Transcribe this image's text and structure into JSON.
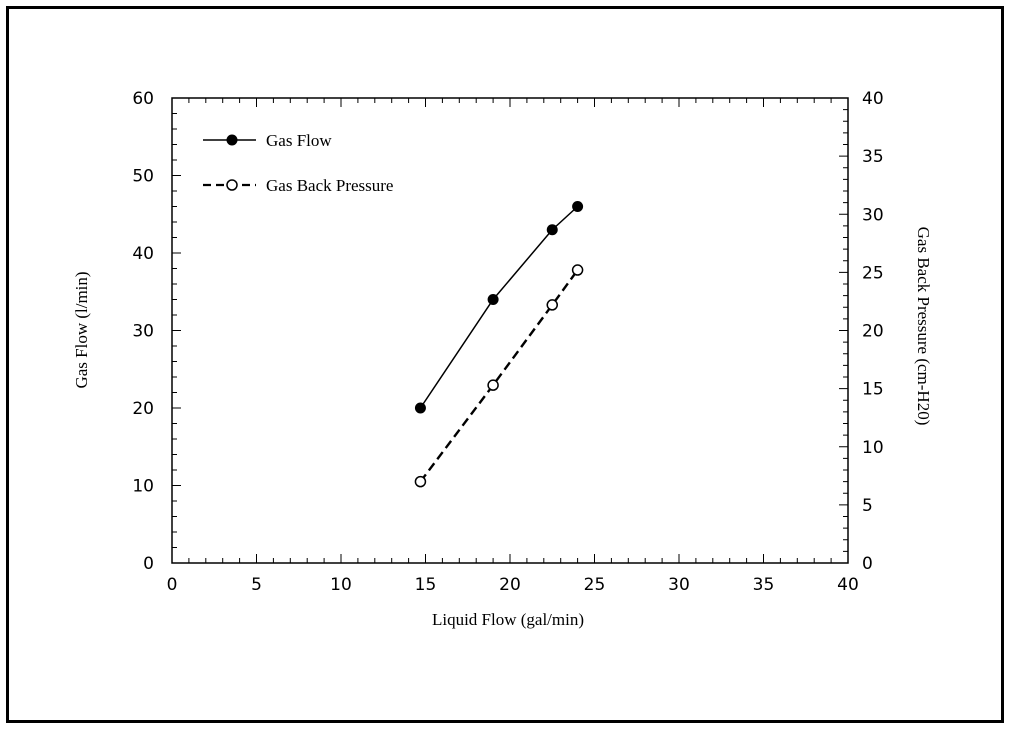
{
  "chart_data": {
    "type": "line",
    "title": "",
    "xlabel": "Liquid Flow (gal/min)",
    "ylabel": "Gas Flow (l/min)",
    "y2label": "Gas Back Pressure (cm-H20)",
    "xlim": [
      0,
      40
    ],
    "ylim": [
      0,
      60
    ],
    "y2lim": [
      0,
      40
    ],
    "xticks": [
      "0",
      "5",
      "10",
      "15",
      "20",
      "25",
      "30",
      "35",
      "40"
    ],
    "yticks": [
      "0",
      "10",
      "20",
      "30",
      "40",
      "50",
      "60"
    ],
    "y2ticks": [
      "0",
      "5",
      "10",
      "15",
      "20",
      "25",
      "30",
      "35",
      "40"
    ],
    "grid": false,
    "legend_position": "top-left",
    "series": [
      {
        "name": "Gas Flow",
        "axis": "left",
        "style": "solid",
        "marker": "filled-circle",
        "x": [
          14.7,
          19,
          22.5,
          24
        ],
        "y": [
          20,
          34,
          43,
          46
        ]
      },
      {
        "name": "Gas Back Pressure",
        "axis": "right",
        "style": "dashed",
        "marker": "open-circle",
        "x": [
          14.7,
          19,
          22.5,
          24
        ],
        "y": [
          7,
          15.3,
          22.2,
          25.2
        ]
      }
    ]
  }
}
